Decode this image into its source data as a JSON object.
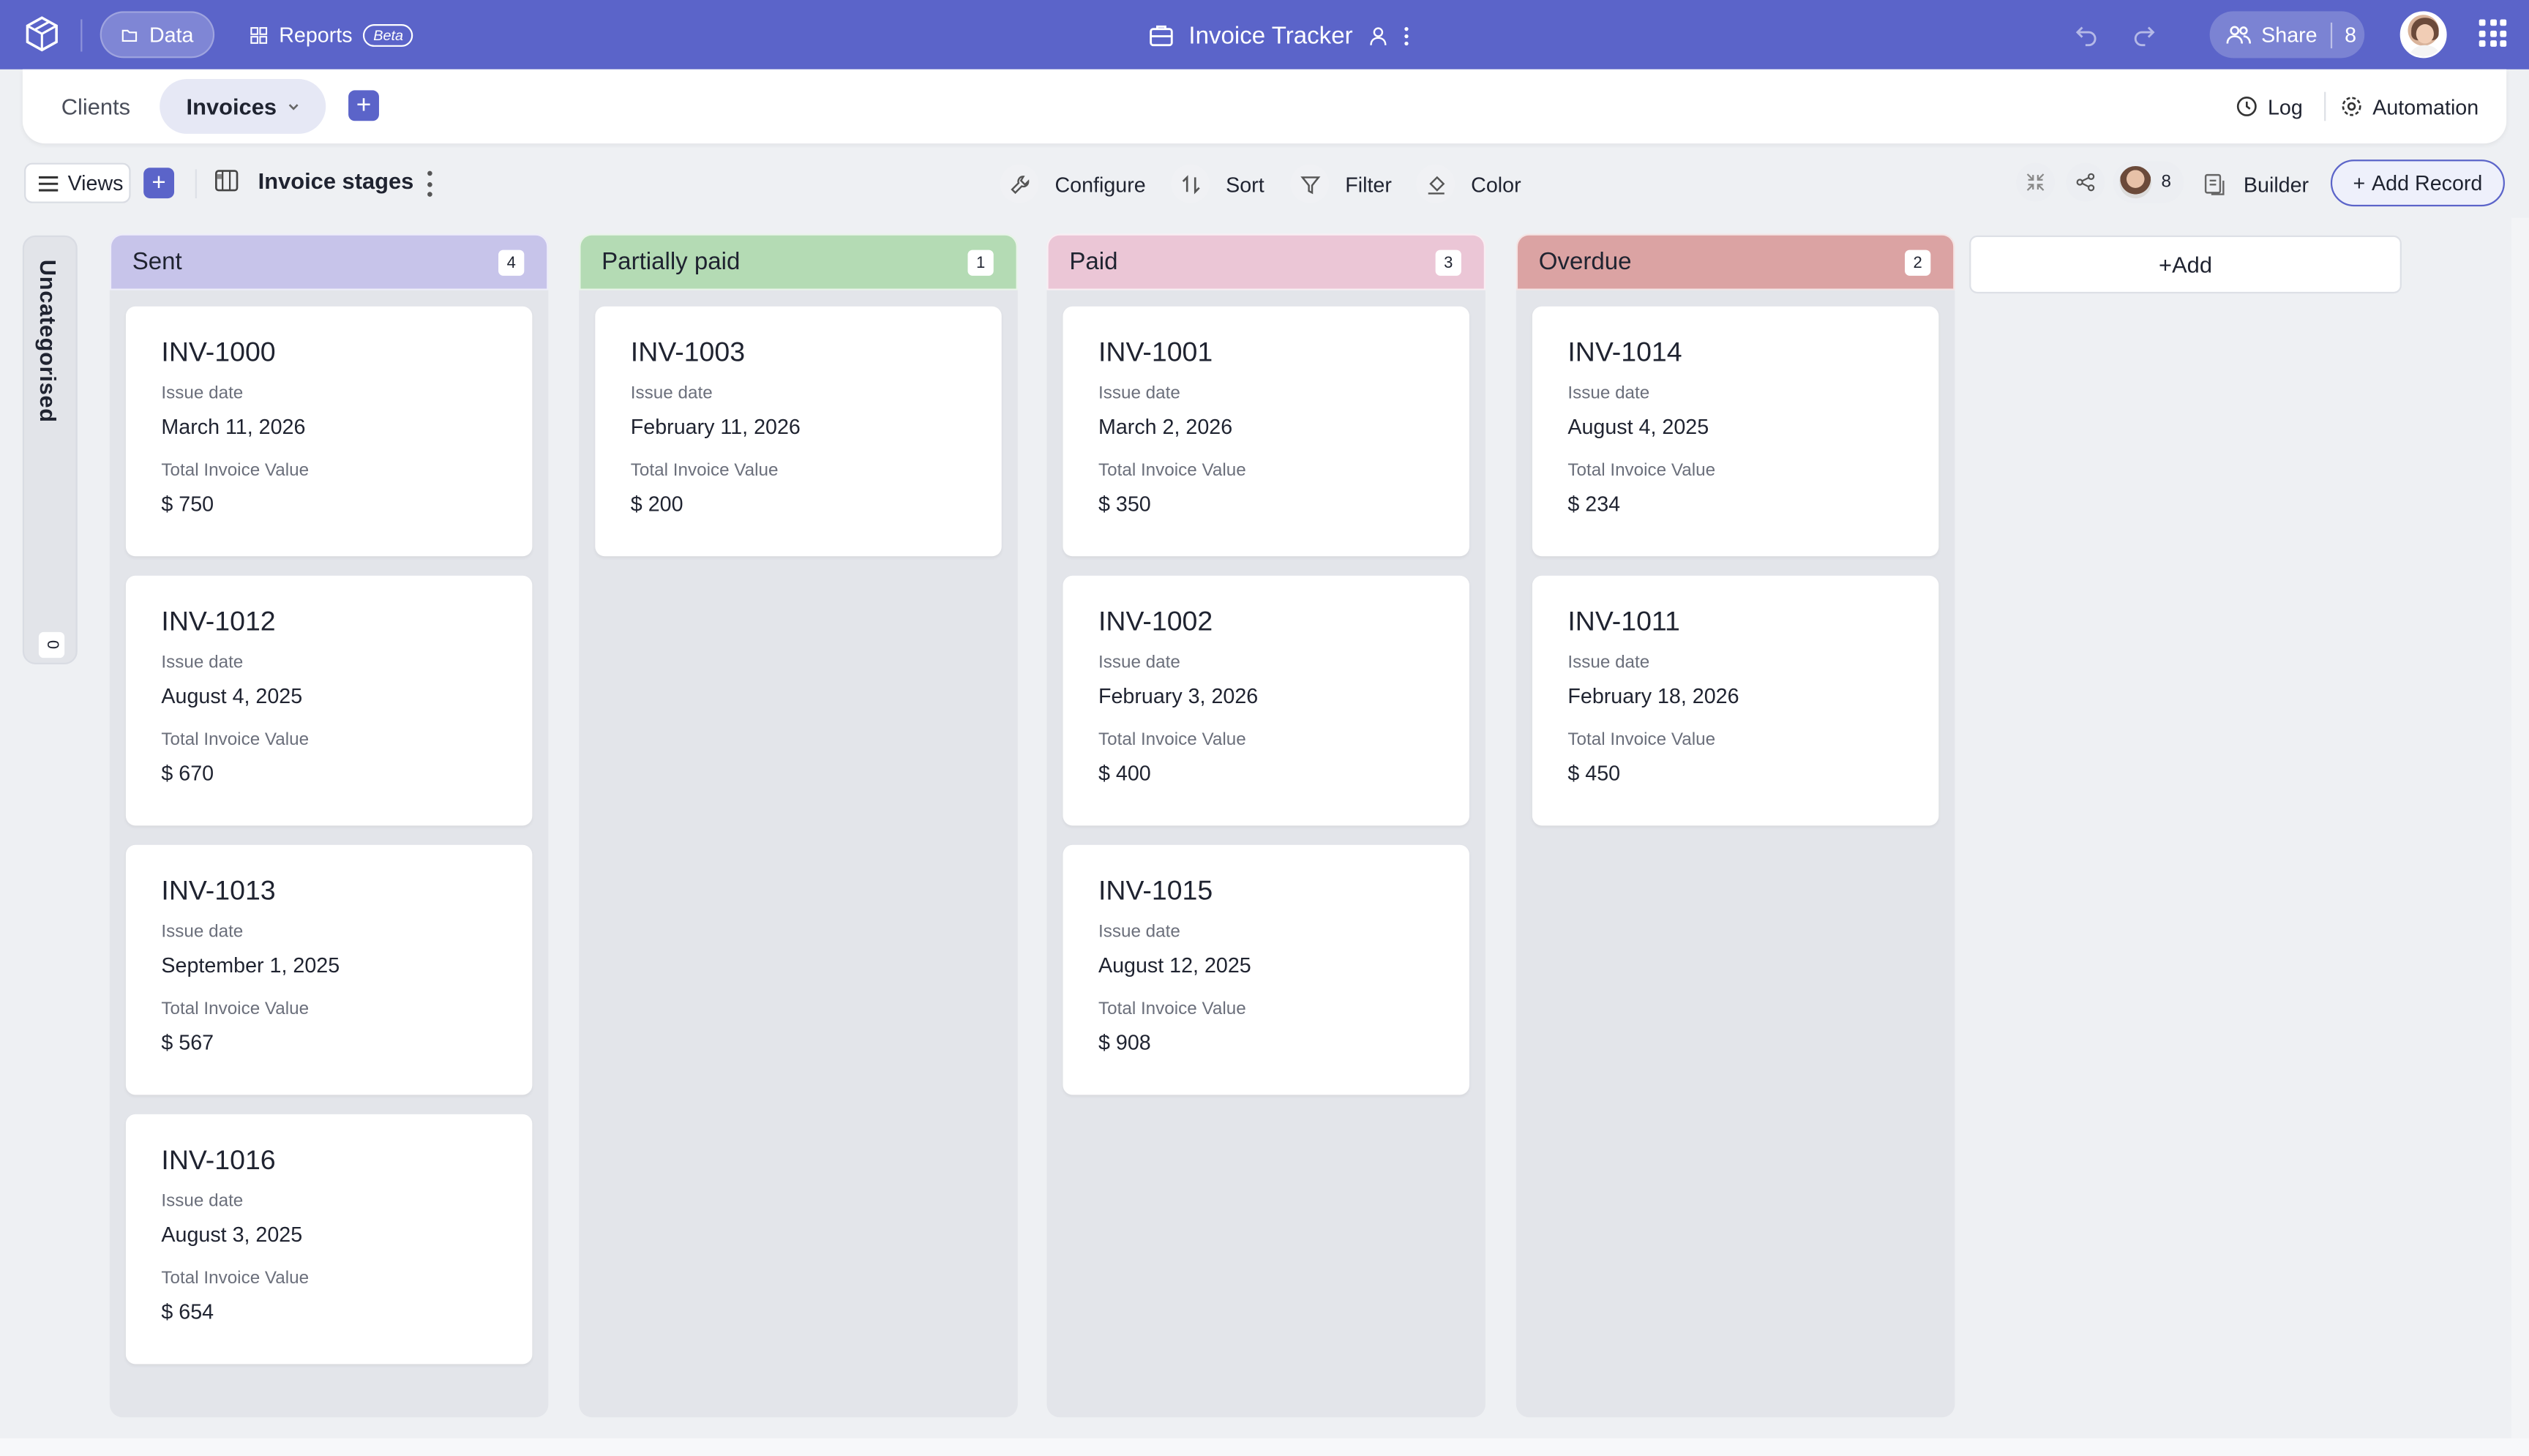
{
  "topbar": {
    "nav_data": "Data",
    "nav_reports": "Reports",
    "beta_badge": "Beta",
    "app_title": "Invoice Tracker",
    "share_label": "Share",
    "share_count": "8"
  },
  "tabs": {
    "clients": "Clients",
    "invoices": "Invoices",
    "log": "Log",
    "automation": "Automation"
  },
  "toolbar": {
    "views": "Views",
    "stage_title": "Invoice stages",
    "configure": "Configure",
    "sort": "Sort",
    "filter": "Filter",
    "color": "Color",
    "collaborators": "8",
    "builder": "Builder",
    "add_record": "Add Record"
  },
  "board": {
    "uncategorised": {
      "label": "Uncategorised",
      "count": "0"
    },
    "field_labels": {
      "issue_date": "Issue date",
      "total": "Total Invoice Value"
    },
    "add_column": "Add",
    "columns": [
      {
        "name": "Sent",
        "count": "4",
        "color": "#c7c4ea",
        "cards": [
          {
            "id": "INV-1000",
            "issue_date": "March 11, 2026",
            "total": "$ 750"
          },
          {
            "id": "INV-1012",
            "issue_date": "August 4, 2025",
            "total": "$ 670"
          },
          {
            "id": "INV-1013",
            "issue_date": "September 1, 2025",
            "total": "$ 567"
          },
          {
            "id": "INV-1016",
            "issue_date": "August 3, 2025",
            "total": "$ 654"
          }
        ]
      },
      {
        "name": "Partially paid",
        "count": "1",
        "color": "#b4dbb4",
        "cards": [
          {
            "id": "INV-1003",
            "issue_date": "February 11, 2026",
            "total": "$ 200"
          }
        ]
      },
      {
        "name": "Paid",
        "count": "3",
        "color": "#ebc6d6",
        "cards": [
          {
            "id": "INV-1001",
            "issue_date": "March 2, 2026",
            "total": "$ 350"
          },
          {
            "id": "INV-1002",
            "issue_date": "February 3, 2026",
            "total": "$ 400"
          },
          {
            "id": "INV-1015",
            "issue_date": "August 12, 2025",
            "total": "$ 908"
          }
        ]
      },
      {
        "name": "Overdue",
        "count": "2",
        "color": "#dba3a3",
        "cards": [
          {
            "id": "INV-1014",
            "issue_date": "August 4, 2025",
            "total": "$ 234"
          },
          {
            "id": "INV-1011",
            "issue_date": "February 18, 2026",
            "total": "$ 450"
          }
        ]
      }
    ]
  }
}
